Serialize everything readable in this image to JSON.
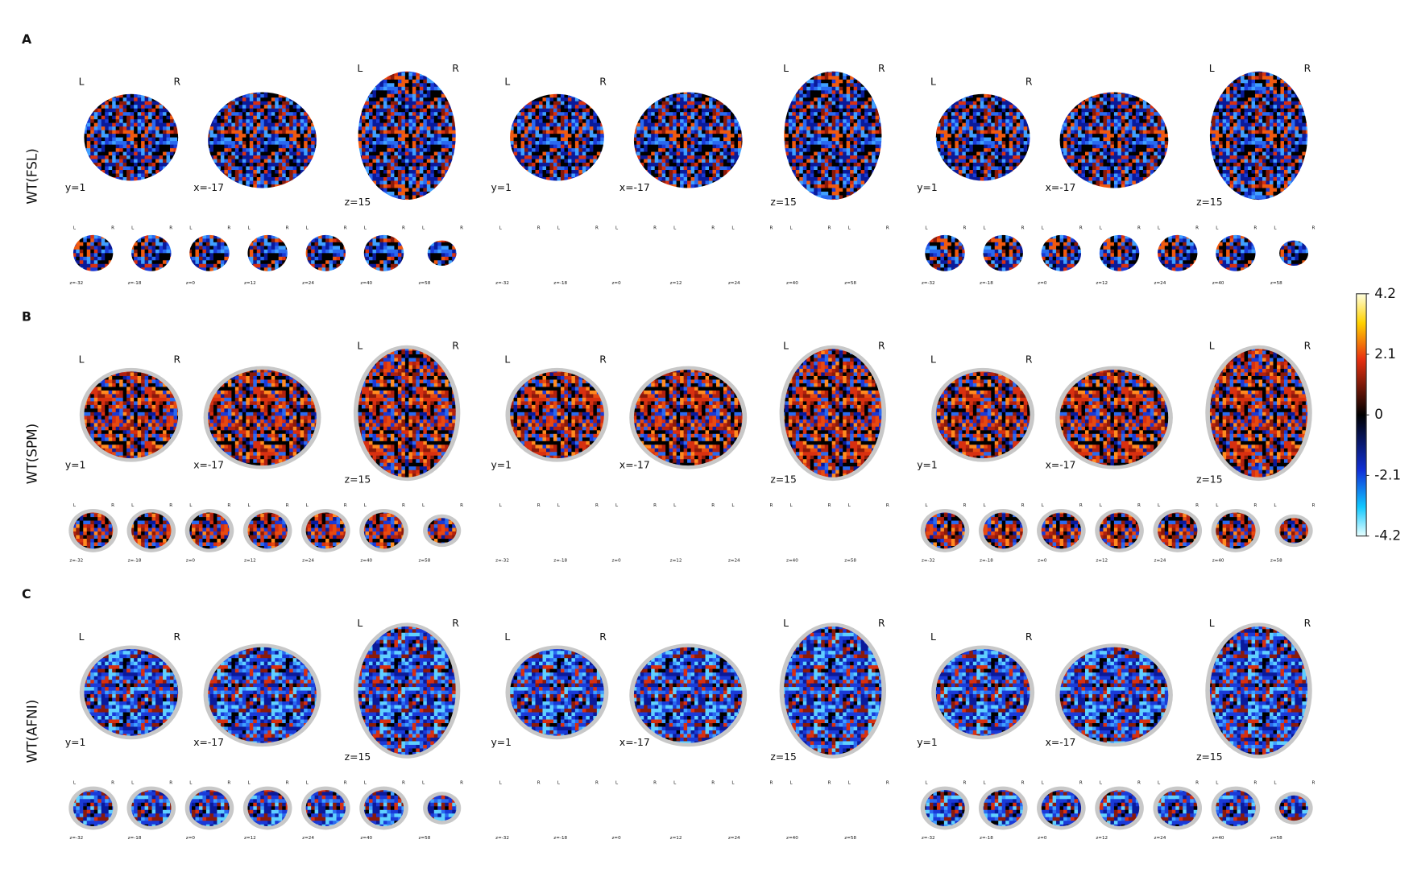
{
  "panels": [
    {
      "letter": "A",
      "label": "WT(FSL)"
    },
    {
      "letter": "B",
      "label": "WT(SPM)"
    },
    {
      "letter": "C",
      "label": "WT(AFNI)"
    }
  ],
  "views": {
    "coronal": "y=1",
    "sagittal": "x=-17",
    "axial": "z=15"
  },
  "orientation": {
    "left": "L",
    "right": "R"
  },
  "slices": [
    "z=-32",
    "z=-18",
    "z=0",
    "z=12",
    "z=24",
    "z=40",
    "z=58"
  ],
  "colorbar": {
    "lim": [
      -4.2,
      4.2
    ],
    "ticks": [
      4.2,
      2.1,
      0,
      -2.1,
      -4.2
    ]
  }
}
